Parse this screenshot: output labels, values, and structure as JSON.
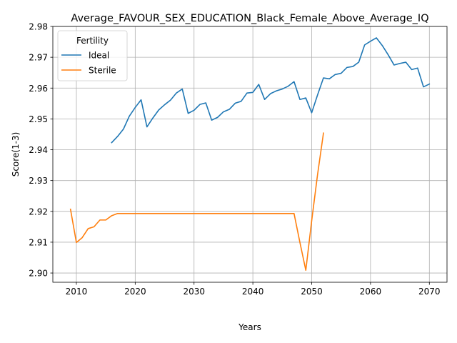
{
  "chart_data": {
    "type": "line",
    "title": "Average_FAVOUR_SEX_EDUCATION_Black_Female_Above_Average_IQ",
    "xlabel": "Years",
    "ylabel": "Score(1-3)",
    "xlim": [
      2006,
      2073
    ],
    "ylim": [
      2.897,
      2.98
    ],
    "x_ticks": [
      2010,
      2020,
      2030,
      2040,
      2050,
      2060,
      2070
    ],
    "y_ticks": [
      2.9,
      2.91,
      2.92,
      2.93,
      2.94,
      2.95,
      2.96,
      2.97,
      2.98
    ],
    "grid": true,
    "legend": {
      "title": "Fertility",
      "placement": "top-left"
    },
    "series": [
      {
        "name": "Ideal",
        "color": "#1f77b4",
        "x": [
          2016,
          2017,
          2018,
          2019,
          2020,
          2021,
          2022,
          2023,
          2024,
          2025,
          2026,
          2027,
          2028,
          2029,
          2030,
          2031,
          2032,
          2033,
          2034,
          2035,
          2036,
          2037,
          2038,
          2039,
          2040,
          2041,
          2042,
          2043,
          2044,
          2045,
          2046,
          2047,
          2048,
          2049,
          2050,
          2051,
          2052,
          2053,
          2054,
          2055,
          2056,
          2057,
          2058,
          2059,
          2060,
          2061,
          2062,
          2063,
          2064,
          2065,
          2066,
          2067,
          2068,
          2069,
          2070
        ],
        "values": [
          2.9423,
          2.9443,
          2.9467,
          2.9509,
          2.9537,
          2.9562,
          2.9474,
          2.9503,
          2.9529,
          2.9546,
          2.9561,
          2.9584,
          2.9597,
          2.9518,
          2.9528,
          2.9547,
          2.9552,
          2.9496,
          2.9505,
          2.9523,
          2.9531,
          2.9551,
          2.9557,
          2.9584,
          2.9586,
          2.9612,
          2.9563,
          2.9582,
          2.9591,
          2.9597,
          2.9606,
          2.9621,
          2.9563,
          2.9568,
          2.952,
          2.9578,
          2.9633,
          2.963,
          2.9644,
          2.9648,
          2.9667,
          2.967,
          2.9684,
          2.974,
          2.9752,
          2.9763,
          2.9738,
          2.9708,
          2.9675,
          2.968,
          2.9684,
          2.966,
          2.9665,
          2.9604,
          2.9613
        ]
      },
      {
        "name": "Sterile",
        "color": "#ff7f0e",
        "x": [
          2009,
          2010,
          2011,
          2012,
          2013,
          2014,
          2015,
          2016,
          2017,
          2018,
          2019,
          2020,
          2025,
          2030,
          2035,
          2040,
          2045,
          2047,
          2048,
          2049,
          2050,
          2051,
          2052
        ],
        "values": [
          2.9207,
          2.9099,
          2.9115,
          2.9144,
          2.915,
          2.9172,
          2.9172,
          2.9186,
          2.9193,
          2.9193,
          2.9193,
          2.9193,
          2.9193,
          2.9193,
          2.9193,
          2.9193,
          2.9193,
          2.9193,
          2.9099,
          2.9009,
          2.917,
          2.932,
          2.9454
        ]
      }
    ]
  }
}
